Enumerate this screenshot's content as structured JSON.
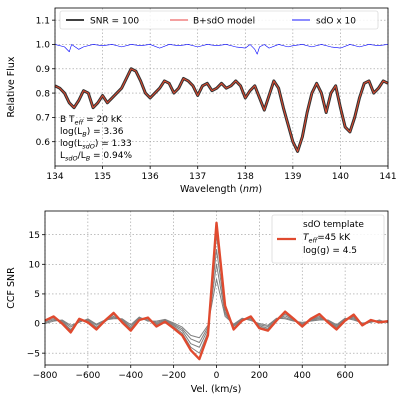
{
  "chart_data": [
    {
      "type": "line",
      "xlabel_prefix": "Wavelength (",
      "xlabel_unit": "nm",
      "xlabel_suffix": ")",
      "ylabel": "Relative Flux",
      "xlim": [
        134,
        141
      ],
      "ylim": [
        0.5,
        1.15
      ],
      "xticks": [
        134,
        135,
        136,
        137,
        138,
        139,
        140,
        141
      ],
      "yticks": [
        0.6,
        0.7,
        0.8,
        0.9,
        1.0,
        1.1
      ],
      "grid": true,
      "legend_position": "top",
      "legend": [
        {
          "label": "SNR = 100",
          "color": "#000000"
        },
        {
          "label": "B+sdO model",
          "color": "#f08080"
        },
        {
          "label": "sdO x 10",
          "color": "#0000ff"
        }
      ],
      "annotation": {
        "line1": "B T",
        "line1_sub": "eff",
        "line1_tail": " = 20 kK",
        "line2": "log(L",
        "line2_sub": "B",
        "line2_tail": ") = 3.36",
        "line3": "log(L",
        "line3_sub": "sdO",
        "line3_tail": ") = 1.33",
        "line4": "L",
        "line4_sub": "sdO",
        "line4_mid": "/L",
        "line4_sub2": "B",
        "line4_tail": " = 0.94%"
      },
      "series": [
        {
          "role": "observed",
          "color": "#333333",
          "x": [
            134.0,
            134.1,
            134.2,
            134.3,
            134.4,
            134.5,
            134.6,
            134.7,
            134.8,
            134.9,
            135.0,
            135.1,
            135.2,
            135.3,
            135.4,
            135.5,
            135.6,
            135.7,
            135.8,
            135.9,
            136.0,
            136.1,
            136.2,
            136.3,
            136.4,
            136.5,
            136.6,
            136.7,
            136.8,
            136.9,
            137.0,
            137.1,
            137.2,
            137.3,
            137.4,
            137.5,
            137.6,
            137.7,
            137.8,
            137.9,
            138.0,
            138.1,
            138.2,
            138.3,
            138.4,
            138.5,
            138.6,
            138.7,
            138.8,
            138.9,
            139.0,
            139.1,
            139.2,
            139.3,
            139.4,
            139.5,
            139.6,
            139.7,
            139.8,
            139.9,
            140.0,
            140.1,
            140.2,
            140.3,
            140.4,
            140.5,
            140.6,
            140.7,
            140.8,
            140.9,
            141.0
          ],
          "y": [
            0.83,
            0.82,
            0.8,
            0.76,
            0.74,
            0.77,
            0.81,
            0.8,
            0.74,
            0.76,
            0.79,
            0.76,
            0.78,
            0.8,
            0.82,
            0.86,
            0.9,
            0.89,
            0.85,
            0.8,
            0.78,
            0.8,
            0.82,
            0.85,
            0.84,
            0.8,
            0.82,
            0.86,
            0.85,
            0.83,
            0.79,
            0.83,
            0.84,
            0.81,
            0.82,
            0.84,
            0.82,
            0.83,
            0.85,
            0.83,
            0.78,
            0.81,
            0.83,
            0.78,
            0.73,
            0.79,
            0.85,
            0.82,
            0.74,
            0.67,
            0.6,
            0.56,
            0.62,
            0.72,
            0.8,
            0.84,
            0.8,
            0.72,
            0.8,
            0.83,
            0.74,
            0.66,
            0.64,
            0.7,
            0.78,
            0.84,
            0.85,
            0.8,
            0.82,
            0.85,
            0.84
          ]
        },
        {
          "role": "model",
          "color": "#e04a2f",
          "x": [
            134.0,
            134.1,
            134.2,
            134.3,
            134.4,
            134.5,
            134.6,
            134.7,
            134.8,
            134.9,
            135.0,
            135.1,
            135.2,
            135.3,
            135.4,
            135.5,
            135.6,
            135.7,
            135.8,
            135.9,
            136.0,
            136.1,
            136.2,
            136.3,
            136.4,
            136.5,
            136.6,
            136.7,
            136.8,
            136.9,
            137.0,
            137.1,
            137.2,
            137.3,
            137.4,
            137.5,
            137.6,
            137.7,
            137.8,
            137.9,
            138.0,
            138.1,
            138.2,
            138.3,
            138.4,
            138.5,
            138.6,
            138.7,
            138.8,
            138.9,
            139.0,
            139.1,
            139.2,
            139.3,
            139.4,
            139.5,
            139.6,
            139.7,
            139.8,
            139.9,
            140.0,
            140.1,
            140.2,
            140.3,
            140.4,
            140.5,
            140.6,
            140.7,
            140.8,
            140.9,
            141.0
          ],
          "y": [
            0.83,
            0.82,
            0.8,
            0.76,
            0.74,
            0.77,
            0.81,
            0.8,
            0.74,
            0.76,
            0.79,
            0.76,
            0.78,
            0.8,
            0.82,
            0.86,
            0.9,
            0.89,
            0.85,
            0.8,
            0.78,
            0.8,
            0.82,
            0.85,
            0.84,
            0.8,
            0.82,
            0.86,
            0.85,
            0.83,
            0.79,
            0.83,
            0.84,
            0.81,
            0.82,
            0.84,
            0.82,
            0.83,
            0.85,
            0.83,
            0.78,
            0.81,
            0.83,
            0.78,
            0.73,
            0.79,
            0.85,
            0.82,
            0.74,
            0.67,
            0.6,
            0.56,
            0.62,
            0.72,
            0.8,
            0.84,
            0.8,
            0.72,
            0.8,
            0.83,
            0.74,
            0.66,
            0.64,
            0.7,
            0.78,
            0.84,
            0.85,
            0.8,
            0.82,
            0.85,
            0.84
          ]
        },
        {
          "role": "sdO",
          "color": "#0000ff",
          "x": [
            134.0,
            134.2,
            134.3,
            134.35,
            134.5,
            134.6,
            134.8,
            135.0,
            135.2,
            135.4,
            135.6,
            135.8,
            136.0,
            136.2,
            136.4,
            136.6,
            136.8,
            137.0,
            137.2,
            137.4,
            137.6,
            137.8,
            138.0,
            138.1,
            138.2,
            138.25,
            138.3,
            138.4,
            138.5,
            138.7,
            138.9,
            139.0,
            139.2,
            139.4,
            139.6,
            139.8,
            140.0,
            140.2,
            140.4,
            140.6,
            140.8,
            141.0
          ],
          "y": [
            1.0,
            0.99,
            0.97,
            1.0,
            0.98,
            0.99,
            1.0,
            0.995,
            1.0,
            0.99,
            1.0,
            0.995,
            1.0,
            0.985,
            1.0,
            0.995,
            1.0,
            0.99,
            1.0,
            0.995,
            1.0,
            0.99,
            0.985,
            1.0,
            0.98,
            0.96,
            0.99,
            1.0,
            0.985,
            1.0,
            0.99,
            0.995,
            1.0,
            0.99,
            1.0,
            0.99,
            0.985,
            1.0,
            0.99,
            1.0,
            0.995,
            1.0
          ]
        }
      ]
    },
    {
      "type": "line",
      "xlabel": "Vel. (km/s)",
      "ylabel": "CCF SNR",
      "xlim": [
        -800,
        800
      ],
      "ylim": [
        -7,
        19
      ],
      "xticks": [
        -800,
        -600,
        -400,
        -200,
        0,
        200,
        400,
        600
      ],
      "yticks": [
        -5,
        0,
        5,
        10,
        15
      ],
      "grid": true,
      "legend_position": "top-right",
      "legend": {
        "color": "#e04a2f",
        "line1": "sdO template",
        "line2": "T",
        "line2_sub": "eff",
        "line2_tail": "=45 kK",
        "line3": "log(g) = 4.5"
      },
      "series": [
        {
          "role": "template",
          "color": "#e04a2f",
          "x": [
            -800,
            -760,
            -720,
            -680,
            -640,
            -600,
            -560,
            -520,
            -480,
            -440,
            -400,
            -360,
            -320,
            -280,
            -240,
            -200,
            -160,
            -120,
            -80,
            -40,
            0,
            40,
            80,
            120,
            160,
            200,
            240,
            280,
            320,
            360,
            400,
            440,
            480,
            520,
            560,
            600,
            640,
            680,
            720,
            760,
            800
          ],
          "y": [
            0.5,
            1.2,
            0.0,
            -1.5,
            0.8,
            0.2,
            -1.0,
            0.5,
            1.8,
            0.2,
            -1.2,
            0.6,
            1.0,
            -0.5,
            0.3,
            -0.8,
            -2.0,
            -4.5,
            -6.0,
            -2.0,
            17.0,
            3.0,
            -1.0,
            0.5,
            1.2,
            -0.8,
            -1.2,
            0.5,
            2.0,
            0.8,
            -0.5,
            0.8,
            1.6,
            0.2,
            -1.0,
            0.5,
            1.5,
            -0.3,
            0.6,
            0.2,
            0.4
          ]
        },
        {
          "role": "trial",
          "color": "#808080",
          "x": [
            -800,
            -760,
            -720,
            -680,
            -640,
            -600,
            -560,
            -520,
            -480,
            -440,
            -400,
            -360,
            -320,
            -280,
            -240,
            -200,
            -160,
            -120,
            -80,
            -40,
            0,
            40,
            80,
            120,
            160,
            200,
            240,
            280,
            320,
            360,
            400,
            440,
            480,
            520,
            560,
            600,
            640,
            680,
            720,
            760,
            800
          ],
          "y": [
            0.6,
            1.0,
            0.2,
            -1.2,
            0.6,
            0.4,
            -0.8,
            0.3,
            1.5,
            0.4,
            -1.0,
            0.8,
            0.9,
            -0.2,
            0.4,
            -0.5,
            -1.6,
            -4.0,
            -5.0,
            -1.5,
            15.0,
            2.5,
            -0.8,
            0.6,
            1.0,
            -0.6,
            -1.0,
            0.6,
            1.6,
            0.7,
            -0.3,
            0.7,
            1.2,
            0.3,
            -0.8,
            0.6,
            1.2,
            -0.2,
            0.5,
            0.3,
            0.4
          ]
        },
        {
          "role": "trial",
          "color": "#808080",
          "x": [
            -800,
            -760,
            -720,
            -680,
            -640,
            -600,
            -560,
            -520,
            -480,
            -440,
            -400,
            -360,
            -320,
            -280,
            -240,
            -200,
            -160,
            -120,
            -80,
            -40,
            0,
            40,
            80,
            120,
            160,
            200,
            240,
            280,
            320,
            360,
            400,
            440,
            480,
            520,
            560,
            600,
            640,
            680,
            720,
            760,
            800
          ],
          "y": [
            0.4,
            0.8,
            0.4,
            -1.0,
            0.5,
            0.6,
            -0.6,
            0.4,
            1.2,
            0.6,
            -0.8,
            0.9,
            0.8,
            0.0,
            0.5,
            -0.3,
            -1.2,
            -3.4,
            -4.0,
            -1.0,
            12.5,
            2.0,
            -0.5,
            0.7,
            0.9,
            -0.4,
            -0.8,
            0.7,
            1.3,
            0.6,
            -0.2,
            0.6,
            1.0,
            0.4,
            -0.6,
            0.7,
            1.0,
            -0.1,
            0.4,
            0.4,
            0.3
          ]
        },
        {
          "role": "trial",
          "color": "#808080",
          "x": [
            -800,
            -760,
            -720,
            -680,
            -640,
            -600,
            -560,
            -520,
            -480,
            -440,
            -400,
            -360,
            -320,
            -280,
            -240,
            -200,
            -160,
            -120,
            -80,
            -40,
            0,
            40,
            80,
            120,
            160,
            200,
            240,
            280,
            320,
            360,
            400,
            440,
            480,
            520,
            560,
            600,
            640,
            680,
            720,
            760,
            800
          ],
          "y": [
            0.2,
            0.6,
            0.5,
            -0.6,
            0.3,
            0.7,
            -0.3,
            0.5,
            1.0,
            0.7,
            -0.5,
            1.0,
            0.6,
            0.2,
            0.6,
            -0.1,
            -0.9,
            -2.6,
            -3.2,
            -0.6,
            10.0,
            1.6,
            -0.3,
            0.8,
            0.7,
            -0.2,
            -0.5,
            0.8,
            1.0,
            0.5,
            0.0,
            0.5,
            0.8,
            0.5,
            -0.4,
            0.8,
            0.8,
            0.0,
            0.3,
            0.5,
            0.2
          ]
        },
        {
          "role": "trial",
          "color": "#808080",
          "x": [
            -800,
            -760,
            -720,
            -680,
            -640,
            -600,
            -560,
            -520,
            -480,
            -440,
            -400,
            -360,
            -320,
            -280,
            -240,
            -200,
            -160,
            -120,
            -80,
            -40,
            0,
            40,
            80,
            120,
            160,
            200,
            240,
            280,
            320,
            360,
            400,
            440,
            480,
            520,
            560,
            600,
            640,
            680,
            720,
            760,
            800
          ],
          "y": [
            0.0,
            0.4,
            0.6,
            -0.3,
            0.2,
            0.8,
            -0.1,
            0.6,
            0.8,
            0.8,
            -0.2,
            1.1,
            0.4,
            0.4,
            0.7,
            0.1,
            -0.6,
            -2.0,
            -2.4,
            -0.3,
            7.5,
            1.2,
            -0.1,
            0.9,
            0.5,
            0.0,
            -0.3,
            0.9,
            0.8,
            0.4,
            0.2,
            0.4,
            0.6,
            0.6,
            -0.2,
            0.9,
            0.6,
            0.1,
            0.2,
            0.6,
            0.1
          ]
        }
      ]
    }
  ]
}
